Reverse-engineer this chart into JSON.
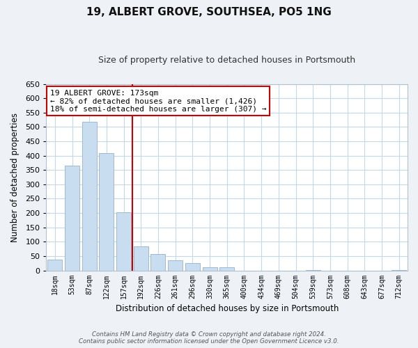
{
  "title": "19, ALBERT GROVE, SOUTHSEA, PO5 1NG",
  "subtitle": "Size of property relative to detached houses in Portsmouth",
  "xlabel": "Distribution of detached houses by size in Portsmouth",
  "ylabel": "Number of detached properties",
  "bar_labels": [
    "18sqm",
    "53sqm",
    "87sqm",
    "122sqm",
    "157sqm",
    "192sqm",
    "226sqm",
    "261sqm",
    "296sqm",
    "330sqm",
    "365sqm",
    "400sqm",
    "434sqm",
    "469sqm",
    "504sqm",
    "539sqm",
    "573sqm",
    "608sqm",
    "643sqm",
    "677sqm",
    "712sqm"
  ],
  "bar_values": [
    38,
    365,
    518,
    410,
    203,
    83,
    57,
    35,
    25,
    10,
    10,
    0,
    0,
    0,
    0,
    2,
    0,
    0,
    0,
    0,
    2
  ],
  "bar_color": "#c8ddf0",
  "bar_edge_color": "#a0b8d0",
  "vline_x": 4.5,
  "vline_color": "#cc0000",
  "annotation_line1": "19 ALBERT GROVE: 173sqm",
  "annotation_line2": "← 82% of detached houses are smaller (1,426)",
  "annotation_line3": "18% of semi-detached houses are larger (307) →",
  "annotation_box_color": "#ffffff",
  "annotation_box_edge": "#cc0000",
  "ylim": [
    0,
    650
  ],
  "yticks": [
    0,
    50,
    100,
    150,
    200,
    250,
    300,
    350,
    400,
    450,
    500,
    550,
    600,
    650
  ],
  "footer_line1": "Contains HM Land Registry data © Crown copyright and database right 2024.",
  "footer_line2": "Contains public sector information licensed under the Open Government Licence v3.0.",
  "bg_color": "#eef2f7",
  "plot_bg_color": "#ffffff",
  "grid_color": "#c5d8e8"
}
